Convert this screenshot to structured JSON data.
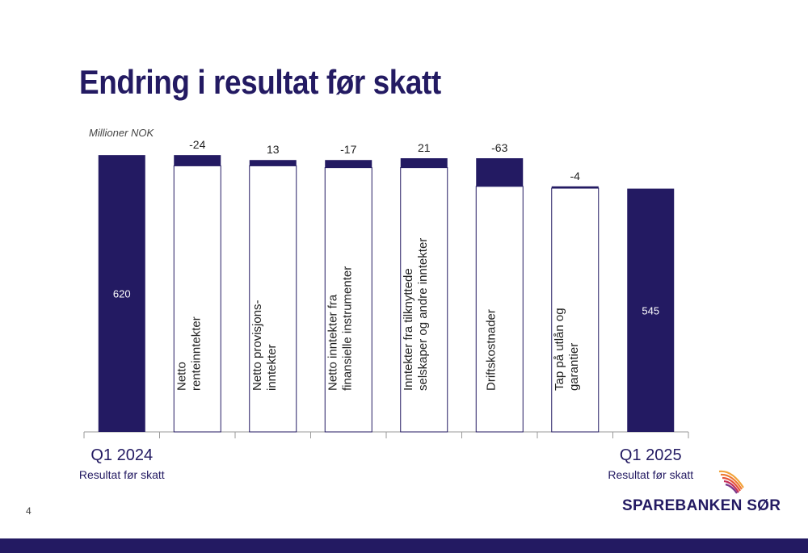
{
  "title": "Endring i resultat før skatt",
  "unit": "Millioner NOK",
  "page_number": "4",
  "brand": {
    "name": "SPAREBANKEN SØR",
    "primary": "#231a62",
    "accent": [
      "#f2a33a",
      "#e5553a",
      "#c42f5a",
      "#7a3a8a"
    ]
  },
  "chart_data": {
    "type": "bar",
    "subtype": "waterfall",
    "unit": "Millioner NOK",
    "categories": [
      {
        "label": "Q1 2024",
        "sublabel": "Resultat før skatt",
        "kind": "total",
        "value": 620,
        "value_label": "620"
      },
      {
        "label": "Netto renteinntekter",
        "lines": [
          "Netto",
          "renteinntekter"
        ],
        "kind": "delta",
        "value": -24,
        "value_label": "-24"
      },
      {
        "label": "Netto provisjonsinntekter",
        "lines": [
          "Netto provisjons-",
          "inntekter"
        ],
        "kind": "delta",
        "value": 13,
        "value_label": "13"
      },
      {
        "label": "Netto inntekter fra finansielle instrumenter",
        "lines": [
          "Netto inntekter fra",
          "finansielle instrumenter"
        ],
        "kind": "delta",
        "value": -17,
        "value_label": "-17"
      },
      {
        "label": "Inntekter fra tilknyttede selskaper og andre inntekter",
        "lines": [
          "Inntekter fra tilknyttede",
          "selskaper og andre inntekter"
        ],
        "kind": "delta",
        "value": 21,
        "value_label": "21"
      },
      {
        "label": "Driftskostnader",
        "lines": [
          "Driftskostnader"
        ],
        "kind": "delta",
        "value": -63,
        "value_label": "-63"
      },
      {
        "label": "Tap på utlån og garantier",
        "lines": [
          "Tap på utlån og",
          "garantier"
        ],
        "kind": "delta",
        "value": -4,
        "value_label": "-4"
      },
      {
        "label": "Q1 2025",
        "sublabel": "Resultat før skatt",
        "kind": "total",
        "value": 545,
        "value_label": "545"
      }
    ],
    "colors": {
      "bar": "#231a62",
      "outline": "#231a62",
      "axis": "#999999"
    },
    "grid": false,
    "legend": "none"
  }
}
